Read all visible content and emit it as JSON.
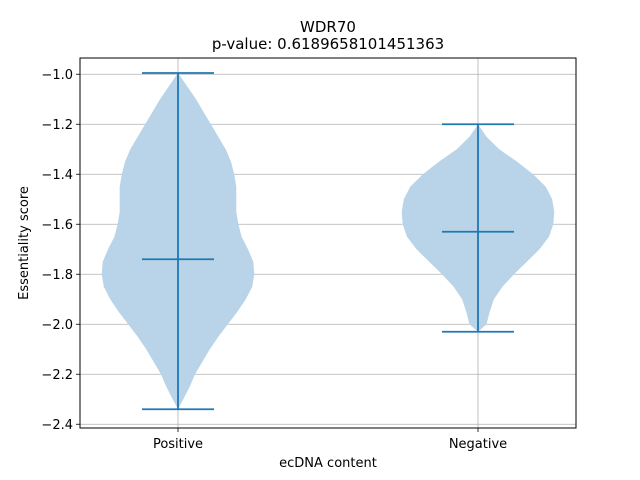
{
  "chart_data": {
    "type": "violin",
    "title": "WDR70",
    "subtitle": "p-value: 0.6189658101451363",
    "xlabel": "ecDNA content",
    "ylabel": "Essentiality score",
    "categories": [
      "Positive",
      "Negative"
    ],
    "ylim": [
      -2.415,
      -0.935
    ],
    "yticks": [
      -1.0,
      -1.2,
      -1.4,
      -1.6,
      -1.8,
      -2.0,
      -2.2,
      -2.4
    ],
    "ytick_labels": [
      "−1.0",
      "−1.2",
      "−1.4",
      "−1.6",
      "−1.8",
      "−2.0",
      "−2.2",
      "−2.4"
    ],
    "grid": true,
    "fill_color": "#b9d4e8",
    "line_color": "#1f77b4",
    "violins": [
      {
        "category": "Positive",
        "max": -0.995,
        "min": -2.34,
        "median": -1.74,
        "density": [
          [
            -0.995,
            0.0
          ],
          [
            -1.05,
            0.09
          ],
          [
            -1.1,
            0.17
          ],
          [
            -1.15,
            0.24
          ],
          [
            -1.2,
            0.31
          ],
          [
            -1.25,
            0.38
          ],
          [
            -1.3,
            0.45
          ],
          [
            -1.35,
            0.5
          ],
          [
            -1.4,
            0.53
          ],
          [
            -1.45,
            0.55
          ],
          [
            -1.5,
            0.55
          ],
          [
            -1.55,
            0.55
          ],
          [
            -1.6,
            0.57
          ],
          [
            -1.65,
            0.6
          ],
          [
            -1.7,
            0.66
          ],
          [
            -1.75,
            0.71
          ],
          [
            -1.8,
            0.72
          ],
          [
            -1.85,
            0.7
          ],
          [
            -1.9,
            0.64
          ],
          [
            -1.95,
            0.56
          ],
          [
            -2.0,
            0.47
          ],
          [
            -2.05,
            0.38
          ],
          [
            -2.1,
            0.3
          ],
          [
            -2.15,
            0.23
          ],
          [
            -2.2,
            0.16
          ],
          [
            -2.25,
            0.11
          ],
          [
            -2.3,
            0.05
          ],
          [
            -2.34,
            0.0
          ]
        ]
      },
      {
        "category": "Negative",
        "max": -1.2,
        "min": -2.03,
        "median": -1.63,
        "density": [
          [
            -1.2,
            0.0
          ],
          [
            -1.25,
            0.08
          ],
          [
            -1.3,
            0.2
          ],
          [
            -1.35,
            0.37
          ],
          [
            -1.4,
            0.52
          ],
          [
            -1.45,
            0.64
          ],
          [
            -1.5,
            0.7
          ],
          [
            -1.55,
            0.72
          ],
          [
            -1.6,
            0.71
          ],
          [
            -1.65,
            0.67
          ],
          [
            -1.7,
            0.58
          ],
          [
            -1.75,
            0.46
          ],
          [
            -1.8,
            0.34
          ],
          [
            -1.85,
            0.23
          ],
          [
            -1.9,
            0.15
          ],
          [
            -1.95,
            0.11
          ],
          [
            -2.0,
            0.08
          ],
          [
            -2.03,
            0.0
          ]
        ]
      }
    ]
  }
}
